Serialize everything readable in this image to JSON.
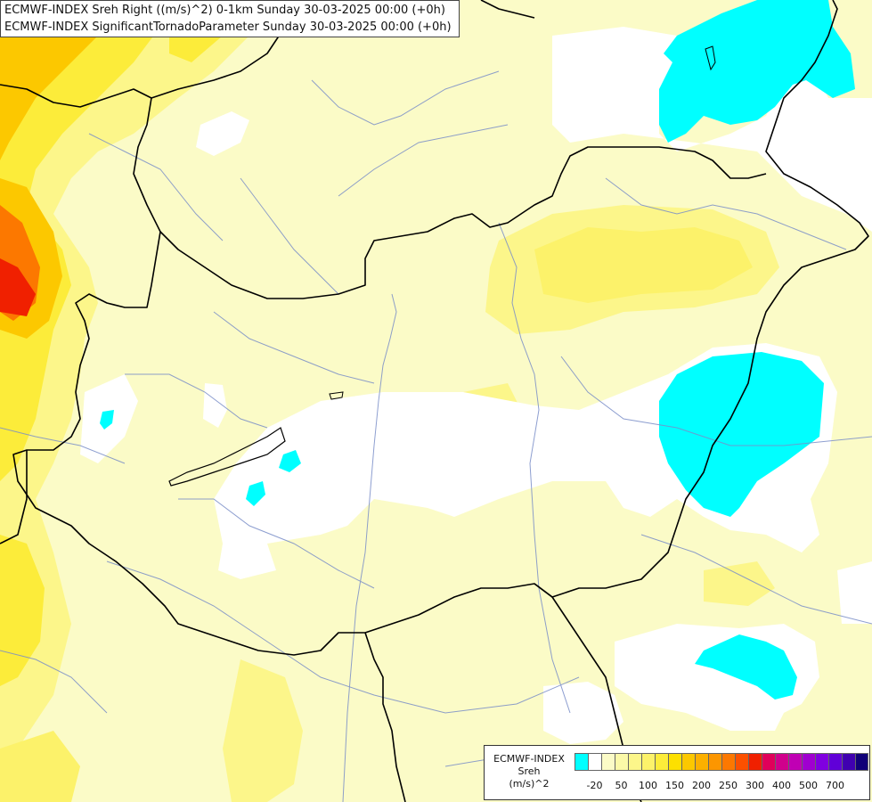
{
  "title": {
    "line1": "ECMWF-INDEX Sreh Right ((m/s)^2) 0-1km Sunday 30-03-2025 00:00 (+0h)",
    "line2": "ECMWF-INDEX SignificantTornadoParameter Sunday 30-03-2025 00:00 (+0h)"
  },
  "legend": {
    "source": "ECMWF-INDEX",
    "variable": "Sreh",
    "unit": "(m/s)^2",
    "colors": [
      "#00ffff",
      "#ffffff",
      "#fbfbc7",
      "#fbf9a8",
      "#fcf68a",
      "#fcf26a",
      "#fcec3a",
      "#fde000",
      "#fcc800",
      "#fcb000",
      "#fc9600",
      "#fc7800",
      "#fc5000",
      "#f02000",
      "#e0005a",
      "#d0008c",
      "#c000b4",
      "#a000d0",
      "#8000e0",
      "#6000d8",
      "#4000b0",
      "#100078"
    ],
    "tick_labels": [
      {
        "index": 1,
        "label": "-20"
      },
      {
        "index": 3,
        "label": "50"
      },
      {
        "index": 5,
        "label": "100"
      },
      {
        "index": 7,
        "label": "150"
      },
      {
        "index": 9,
        "label": "200"
      },
      {
        "index": 11,
        "label": "250"
      },
      {
        "index": 13,
        "label": "300"
      },
      {
        "index": 15,
        "label": "400"
      },
      {
        "index": 17,
        "label": "500"
      },
      {
        "index": 19,
        "label": "700"
      }
    ]
  }
}
